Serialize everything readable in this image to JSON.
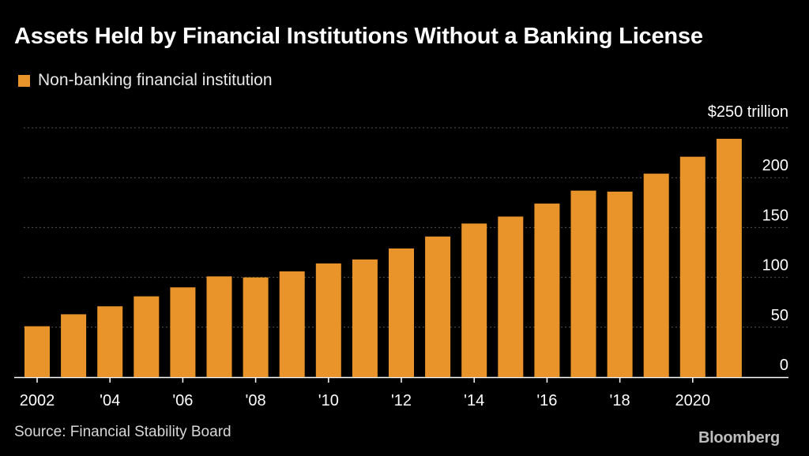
{
  "colors": {
    "background": "#000000",
    "bar": "#E8942A",
    "gridline": "#555555",
    "text": "#ffffff"
  },
  "brand": "Bloomberg",
  "source": "Source: Financial Stability Board",
  "chart_data": {
    "type": "bar",
    "title": "Assets Held by Financial Institutions Without a Banking License",
    "legend": [
      "Non-banking financial institution"
    ],
    "legend_position": "top-left",
    "y_unit_label": "$250 trillion",
    "y_ticks": [
      0,
      50,
      100,
      150,
      200
    ],
    "ylim": [
      0,
      250
    ],
    "grid": true,
    "x": [
      "2002",
      "2003",
      "2004",
      "2005",
      "2006",
      "2007",
      "2008",
      "2009",
      "2010",
      "2011",
      "2012",
      "2013",
      "2014",
      "2015",
      "2016",
      "2017",
      "2018",
      "2019",
      "2020",
      "2021"
    ],
    "x_tick_labels": [
      "2002",
      "'04",
      "'06",
      "'08",
      "'10",
      "'12",
      "'14",
      "'16",
      "'18",
      "2020"
    ],
    "series": [
      {
        "name": "Non-banking financial institution",
        "values": [
          51,
          63,
          71,
          81,
          90,
          101,
          100,
          106,
          114,
          118,
          129,
          141,
          154,
          161,
          174,
          187,
          186,
          204,
          221,
          239
        ]
      }
    ]
  }
}
